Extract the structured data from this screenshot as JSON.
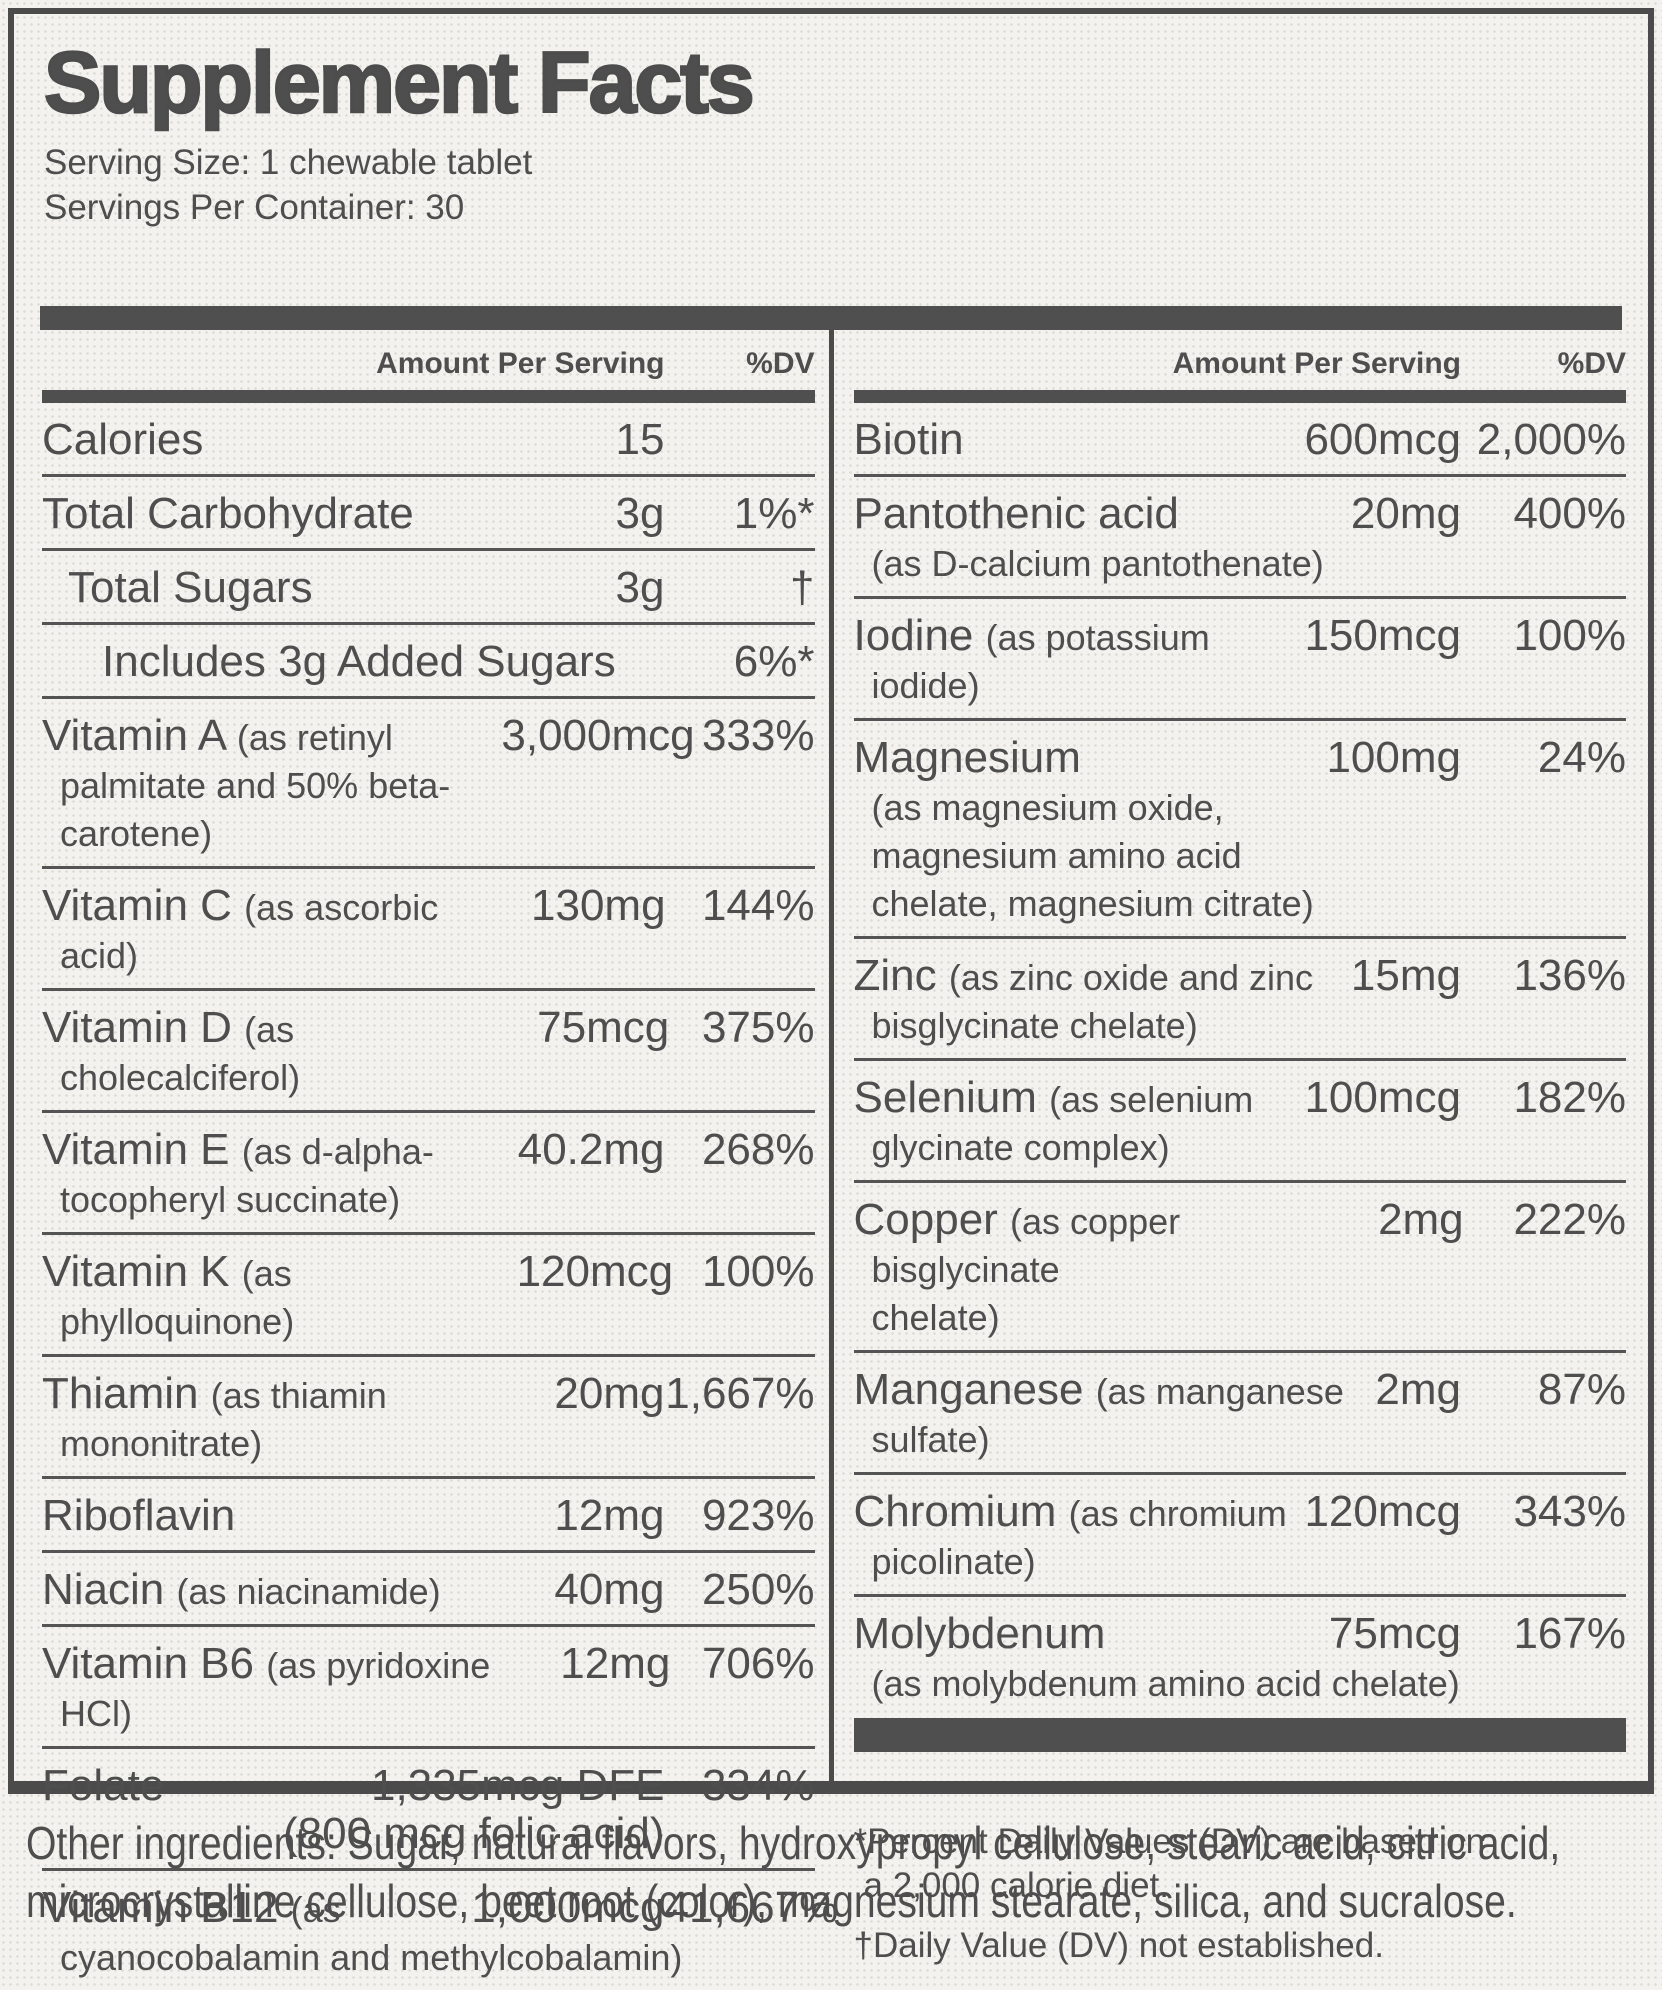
{
  "title": "Supplement Facts",
  "serving": {
    "size": "Serving Size: 1 chewable tablet",
    "per_container": "Servings Per Container: 30"
  },
  "column_header": {
    "amount": "Amount Per Serving",
    "dv": "%DV"
  },
  "columns": {
    "left": {
      "rows": [
        {
          "name": "Calories",
          "amt": "15"
        },
        {
          "name": "Total Carbohydrate",
          "amt": "3g",
          "dv": "1%*"
        },
        {
          "name": "Total Sugars",
          "amt": "3g",
          "dv": "†",
          "indent": 1
        },
        {
          "name": "Includes 3g Added Sugars",
          "dv": "6%*",
          "indent": 2
        },
        {
          "name": "Vitamin A",
          "paren": "(as retinyl\npalmitate and 50% beta-carotene)",
          "amt": "3,000mcg",
          "dv": "333%"
        },
        {
          "name": "Vitamin C",
          "paren": "(as ascorbic acid)",
          "amt": "130mg",
          "dv": "144%"
        },
        {
          "name": "Vitamin D",
          "paren": "(as cholecalciferol)",
          "amt": "75mcg",
          "dv": "375%"
        },
        {
          "name": "Vitamin E",
          "paren": "(as d-alpha-\ntocopheryl succinate)",
          "amt": "40.2mg",
          "dv": "268%"
        },
        {
          "name": "Vitamin K",
          "paren": "(as phylloquinone)",
          "amt": "120mcg",
          "dv": "100%"
        },
        {
          "name": "Thiamin",
          "paren": "(as thiamin\nmononitrate)",
          "amt": "20mg",
          "dv": "1,667%"
        },
        {
          "name": "Riboflavin",
          "amt": "12mg",
          "dv": "923%"
        },
        {
          "name": "Niacin",
          "paren": "(as niacinamide)",
          "amt": "40mg",
          "dv": "250%"
        },
        {
          "name": "Vitamin B6",
          "paren": "(as pyridoxine HCl)",
          "amt": "12mg",
          "dv": "706%"
        },
        {
          "name": "Folate",
          "amt": "1,335mcg DFE\n(800 mcg folic acid)",
          "dv": "334%"
        },
        {
          "name": "Vitamin B12",
          "paren": "(as\ncyanocobalamin and methylcobalamin)",
          "amt": "1,000mcg",
          "dv": "41,667%",
          "overlap": true
        }
      ]
    },
    "right": {
      "rows": [
        {
          "name": "Biotin",
          "amt": "600mcg",
          "dv": "2,000%"
        },
        {
          "name": "Pantothenic acid",
          "paren": "\n(as D-calcium pantothenate)",
          "amt": "20mg",
          "dv": "400%"
        },
        {
          "name": "Iodine",
          "paren": "(as potassium\niodide)",
          "amt": "150mcg",
          "dv": "100%"
        },
        {
          "name": "Magnesium",
          "paren": "\n(as magnesium oxide,\nmagnesium amino acid\nchelate, magnesium citrate)",
          "amt": "100mg",
          "dv": "24%"
        },
        {
          "name": "Zinc",
          "paren": "(as zinc oxide and zinc\nbisglycinate chelate)",
          "amt": "15mg",
          "dv": "136%"
        },
        {
          "name": "Selenium",
          "paren": "(as selenium\nglycinate complex)",
          "amt": "100mcg",
          "dv": "182%"
        },
        {
          "name": "Copper",
          "paren": "(as copper bisglycinate\nchelate)",
          "amt": "2mg",
          "dv": "222%"
        },
        {
          "name": "Manganese",
          "paren": "(as manganese\nsulfate)",
          "amt": "2mg",
          "dv": "87%"
        },
        {
          "name": "Chromium",
          "paren": "(as chromium\npicolinate)",
          "amt": "120mcg",
          "dv": "343%"
        },
        {
          "name": "Molybdenum",
          "paren": "\n(as molybdenum amino acid chelate)",
          "amt": "75mcg",
          "dv": "167%",
          "overlap": true
        }
      ]
    }
  },
  "footnotes": {
    "dv_note": "*Percent Daily Values (DV) are based on\na 2,000 calorie diet.",
    "not_established": "†Daily Value (DV) not established."
  },
  "other_ingredients": "Other ingredients: Sugar, natural flavors, hydroxypropyl cellulose, stearic acid, citric acid,\nmicrocrystalline cellulose, beet root (color), magnesium stearate, silica, and sucralose.",
  "colors": {
    "ink": "#4e4e4e",
    "bar": "#4f4f4f",
    "background": "#f3f2ee"
  }
}
